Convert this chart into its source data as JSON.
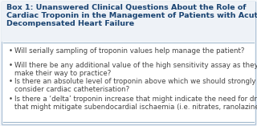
{
  "title_line1": "Box 1: Unanswered Clinical Questions About the Role of",
  "title_line2": "Cardiac Troponin in the Management of Patients with Acute",
  "title_line3": "Decompensated Heart Failure",
  "bullet_points": [
    [
      "Will serially sampling of troponin values help manage the patient?"
    ],
    [
      "Will there be any additional value of the high sensitivity assay as they",
      "make their way to practice?"
    ],
    [
      "Is there an absolute level of troponin above which we should strongly",
      "consider cardiac catheterisation?"
    ],
    [
      "Is there a ‘delta’ troponin increase that might indicate the need for drugs",
      "that might mitigate subendocardial ischaemia (i.e. nitrates, ranolazine)?"
    ]
  ],
  "bg_color": "#f5f7fa",
  "box_bg": "#ffffff",
  "border_color": "#b0c4d8",
  "title_color": "#1a4472",
  "bullet_color": "#444444",
  "separator_color": "#a0b8cc",
  "title_fontsize": 6.8,
  "bullet_fontsize": 6.2
}
